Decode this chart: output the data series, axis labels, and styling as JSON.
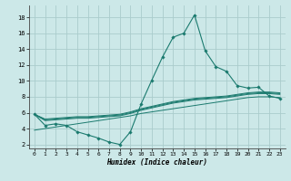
{
  "xlabel": "Humidex (Indice chaleur)",
  "xlim": [
    -0.5,
    23.5
  ],
  "ylim": [
    1.5,
    19.5
  ],
  "yticks": [
    2,
    4,
    6,
    8,
    10,
    12,
    14,
    16,
    18
  ],
  "xticks": [
    0,
    1,
    2,
    3,
    4,
    5,
    6,
    7,
    8,
    9,
    10,
    11,
    12,
    13,
    14,
    15,
    16,
    17,
    18,
    19,
    20,
    21,
    22,
    23
  ],
  "bg_color": "#cce8e8",
  "grid_color": "#aacccc",
  "line_color": "#1a7a6e",
  "line_main": [
    5.8,
    4.4,
    4.6,
    4.4,
    3.6,
    3.2,
    2.8,
    2.3,
    2.0,
    3.6,
    7.1,
    10.1,
    13.0,
    15.5,
    16.0,
    18.3,
    13.8,
    11.8,
    11.2,
    9.4,
    9.1,
    9.2,
    8.1,
    7.8
  ],
  "line_upper1": [
    5.8,
    5.2,
    5.3,
    5.4,
    5.5,
    5.5,
    5.6,
    5.7,
    5.8,
    6.1,
    6.5,
    6.8,
    7.1,
    7.4,
    7.6,
    7.8,
    7.9,
    8.0,
    8.1,
    8.3,
    8.5,
    8.6,
    8.6,
    8.5
  ],
  "line_upper2": [
    5.8,
    5.1,
    5.2,
    5.3,
    5.4,
    5.4,
    5.5,
    5.6,
    5.7,
    6.0,
    6.4,
    6.7,
    7.0,
    7.3,
    7.5,
    7.7,
    7.8,
    7.9,
    8.0,
    8.2,
    8.4,
    8.5,
    8.5,
    8.4
  ],
  "line_upper3": [
    5.8,
    5.0,
    5.1,
    5.2,
    5.3,
    5.3,
    5.4,
    5.5,
    5.6,
    5.9,
    6.3,
    6.6,
    6.9,
    7.2,
    7.4,
    7.6,
    7.7,
    7.8,
    7.9,
    8.1,
    8.3,
    8.4,
    8.4,
    8.3
  ],
  "line_lower": [
    3.8,
    4.0,
    4.2,
    4.4,
    4.6,
    4.8,
    5.0,
    5.2,
    5.4,
    5.6,
    5.9,
    6.1,
    6.3,
    6.5,
    6.7,
    6.9,
    7.1,
    7.3,
    7.5,
    7.7,
    7.9,
    8.0,
    8.0,
    7.9
  ]
}
